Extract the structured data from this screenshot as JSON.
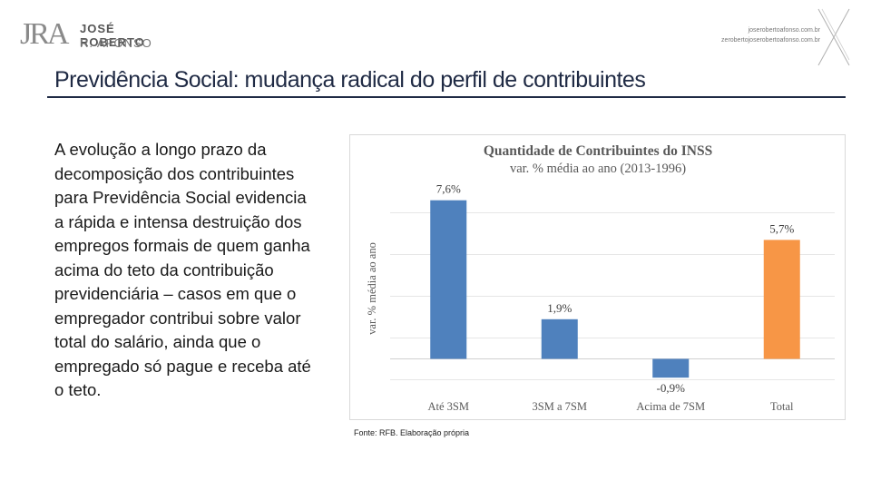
{
  "header": {
    "logo_mark": "JRA",
    "logo_line1": "JOSÉ ROBERTO",
    "logo_line2": "R. AFONSO",
    "contact_line1": "joserobertoafonso.com.br",
    "contact_line2": "zerobertojoserobertoafonso.com.br"
  },
  "slide": {
    "title": "Previdência Social: mudança radical do perfil de contribuintes",
    "body": "A evolução a longo prazo da decomposição dos contribuintes para Previdência Social evidencia a rápida e intensa destruição dos empregos formais de quem ganha acima do teto da contribuição previdenciária – casos em que o empregador contribui sobre valor total do salário, ainda que o empregado só pague e receba até o teto.",
    "source": "Fonte: RFB. Elaboração própria"
  },
  "chart_data": {
    "type": "bar",
    "title": "Quantidade de Contribuintes do INSS",
    "subtitle": "var. % média ao ano (2013-1996)",
    "ylabel": "var. % média ao ano",
    "xlabel": "",
    "categories": [
      "Até 3SM",
      "3SM a 7SM",
      "Acima de 7SM",
      "Total"
    ],
    "values": [
      7.6,
      1.9,
      -0.9,
      5.7
    ],
    "data_labels": [
      "7,6%",
      "1,9%",
      "-0,9%",
      "5,7%"
    ],
    "colors": [
      "#4f81bd",
      "#4f81bd",
      "#4f81bd",
      "#f79646"
    ],
    "ylim": [
      -1.5,
      8.5
    ],
    "grid": true,
    "legend": "none"
  }
}
